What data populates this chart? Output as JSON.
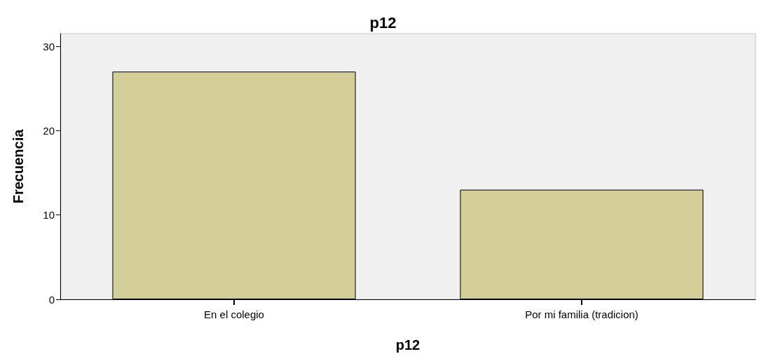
{
  "chart_data": {
    "type": "bar",
    "title": "p12",
    "xlabel": "p12",
    "ylabel": "Frecuencia",
    "categories": [
      "En el colegio",
      "Por mi familia (tradicion)"
    ],
    "values": [
      27,
      13
    ],
    "color": "#d3ce97",
    "ylim": [
      0,
      31.5
    ],
    "yticks": [
      0,
      10,
      20,
      30
    ],
    "grid": false
  }
}
